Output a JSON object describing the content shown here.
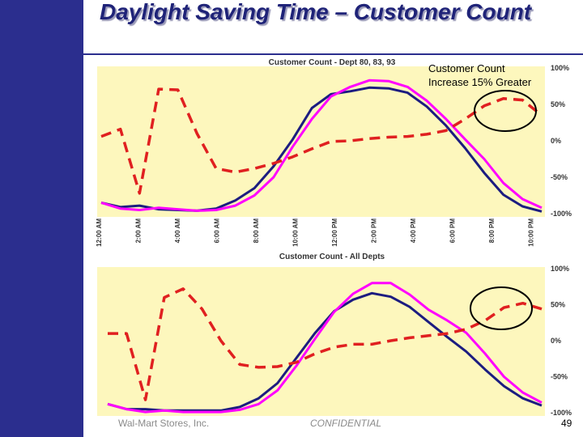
{
  "title": "Daylight Saving Time – Customer Count",
  "annotation": {
    "line1": "Customer Count",
    "line2": "Increase 15% Greater"
  },
  "footer": {
    "company": "Wal-Mart Stores, Inc.",
    "confidential": "CONFIDENTIAL",
    "page": "49"
  },
  "colors": {
    "background": "#fdf7bd",
    "navy": "#1c1c80",
    "magenta": "#ff00ff",
    "red": "#e02020",
    "sidebar": "#2b2e8e"
  },
  "chart_data": [
    {
      "type": "line",
      "title": "Customer Count - Dept 80, 83, 93",
      "xlabel": "",
      "ylabel": "",
      "categories": [
        "12:00 AM",
        "2:00 AM",
        "4:00 AM",
        "6:00 AM",
        "8:00 AM",
        "10:00 AM",
        "12:00 PM",
        "2:00 PM",
        "4:00 PM",
        "6:00 PM",
        "8:00 PM",
        "10:00 PM"
      ],
      "y_tick_labels": [
        "100%",
        "50%",
        "0%",
        "-50%",
        "-100%"
      ],
      "ylim": [
        -100,
        100
      ],
      "grid": false,
      "series": [
        {
          "style": "solid",
          "color": "#1c1c80",
          "x": [
            0,
            1,
            2,
            3,
            4,
            5,
            6,
            7,
            8,
            9,
            10,
            11,
            12,
            13,
            14,
            15,
            16,
            17,
            18,
            19,
            20,
            21,
            22,
            23
          ],
          "y": [
            -85,
            -91,
            -89,
            -94,
            -95,
            -96,
            -93,
            -82,
            -65,
            -35,
            2,
            45,
            64,
            68,
            73,
            72,
            66,
            47,
            21,
            -10,
            -44,
            -74,
            -90,
            -97
          ]
        },
        {
          "style": "solid",
          "color": "#ff00ff",
          "x": [
            0,
            1,
            2,
            3,
            4,
            5,
            6,
            7,
            8,
            9,
            10,
            11,
            12,
            13,
            14,
            15,
            16,
            17,
            18,
            19,
            20,
            21,
            22,
            23
          ],
          "y": [
            -85,
            -93,
            -95,
            -92,
            -94,
            -96,
            -95,
            -89,
            -75,
            -50,
            -8,
            30,
            61,
            74,
            83,
            82,
            74,
            55,
            30,
            2,
            -25,
            -58,
            -80,
            -92
          ]
        },
        {
          "style": "dashed",
          "color": "#e02020",
          "x": [
            0,
            1,
            2,
            3,
            4,
            5,
            6,
            7,
            8,
            9,
            10,
            11,
            12,
            13,
            14,
            15,
            16,
            17,
            18,
            19,
            20,
            21,
            22,
            23
          ],
          "y": [
            6,
            16,
            -72,
            71,
            70,
            10,
            -38,
            -43,
            -38,
            -31,
            -22,
            -11,
            -1,
            0,
            3,
            5,
            6,
            9,
            14,
            30,
            48,
            58,
            56,
            35
          ]
        }
      ]
    },
    {
      "type": "line",
      "title": "Customer Count - All Depts",
      "xlabel": "",
      "ylabel": "",
      "categories": [],
      "y_tick_labels": [
        "100%",
        "50%",
        "0%",
        "-50%",
        "-100%"
      ],
      "ylim": [
        -100,
        100
      ],
      "grid": false,
      "series": [
        {
          "style": "solid",
          "color": "#1c1c80",
          "x": [
            0,
            1,
            2,
            3,
            4,
            5,
            6,
            7,
            8,
            9,
            10,
            11,
            12,
            13,
            14,
            15,
            16,
            17,
            18,
            19,
            20,
            21,
            22,
            23
          ],
          "y": [
            -88,
            -95,
            -95,
            -97,
            -97,
            -97,
            -97,
            -92,
            -80,
            -59,
            -24,
            11,
            41,
            57,
            66,
            61,
            47,
            26,
            5,
            -15,
            -40,
            -63,
            -80,
            -90
          ]
        },
        {
          "style": "solid",
          "color": "#ff00ff",
          "x": [
            0,
            1,
            2,
            3,
            4,
            5,
            6,
            7,
            8,
            9,
            10,
            11,
            12,
            13,
            14,
            15,
            16,
            17,
            18,
            19,
            20,
            21,
            22,
            23
          ],
          "y": [
            -88,
            -95,
            -99,
            -97,
            -99,
            -99,
            -99,
            -96,
            -88,
            -69,
            -35,
            3,
            40,
            65,
            80,
            80,
            64,
            43,
            28,
            11,
            -18,
            -50,
            -72,
            -86
          ]
        },
        {
          "style": "dashed",
          "color": "#e02020",
          "x": [
            0,
            1,
            2,
            3,
            4,
            5,
            6,
            7,
            8,
            9,
            10,
            11,
            12,
            13,
            14,
            15,
            16,
            17,
            18,
            19,
            20,
            21,
            22,
            23
          ],
          "y": [
            10,
            10,
            -82,
            60,
            72,
            44,
            0,
            -33,
            -37,
            -36,
            -30,
            -18,
            -9,
            -5,
            -5,
            0,
            4,
            7,
            10,
            16,
            28,
            46,
            52,
            44
          ]
        }
      ]
    }
  ]
}
